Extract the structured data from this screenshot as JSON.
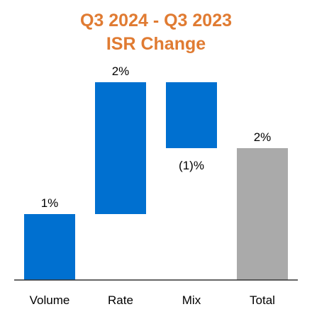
{
  "chart_data": {
    "type": "bar",
    "subtype": "waterfall",
    "title": "Q3 2024 - Q3 2023",
    "subtitle": "ISR Change",
    "categories": [
      "Volume",
      "Rate",
      "Mix",
      "Total"
    ],
    "values": [
      1,
      2,
      -1,
      2
    ],
    "data_labels": [
      "1%",
      "2%",
      "(1)%",
      "2%"
    ],
    "units": "%",
    "ylim": [
      0,
      3
    ],
    "grid": false,
    "legend": "none",
    "colors": {
      "title": "#e07b32",
      "increment": "#0070d0",
      "total": "#aaaaaa",
      "axis": "#333333"
    }
  }
}
